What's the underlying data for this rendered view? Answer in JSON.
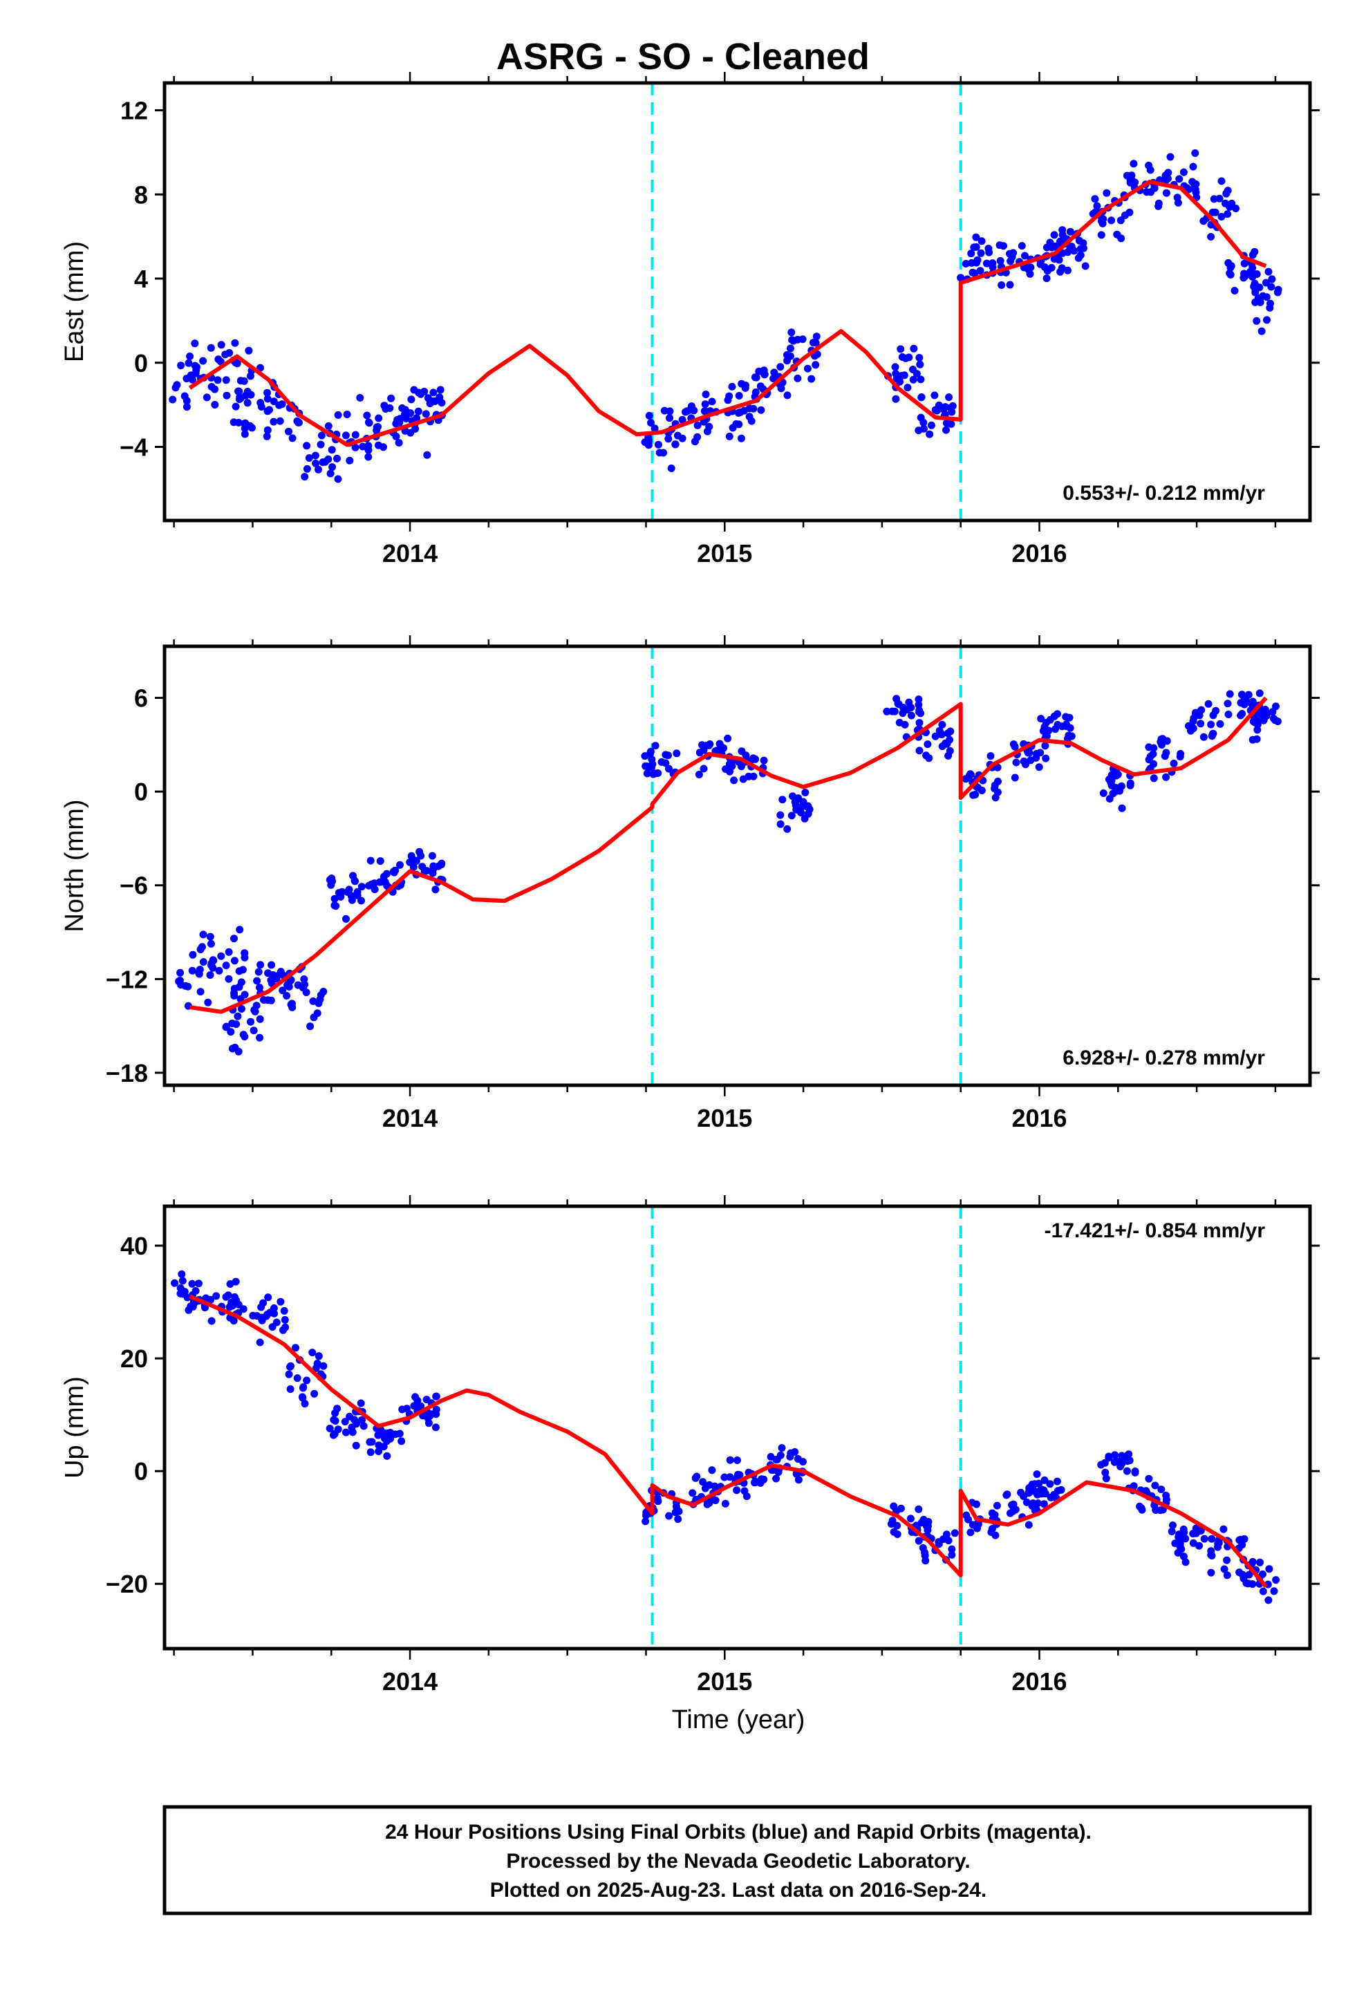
{
  "chart_data": {
    "title": "ASRG  - SO - Cleaned",
    "type": "scatter",
    "xlabel": "Time (year)",
    "x_tick_labels": [
      "2014",
      "2015",
      "2016"
    ],
    "xlim": [
      2013.22,
      2016.86
    ],
    "offsets": [
      2014.77,
      2015.75
    ],
    "colors": {
      "data": "#0000ff",
      "model": "#ff0000",
      "offset_line": "#00e5ee",
      "frame": "#000000"
    },
    "panels": [
      {
        "name": "east",
        "ylabel": "East (mm)",
        "ylim": [
          -7.5,
          13.3
        ],
        "yticks": [
          12,
          8,
          4,
          0,
          -4
        ],
        "ytick_labels": [
          "12",
          "8",
          "4",
          "0",
          "−4"
        ],
        "rate_text": "0.553+/- 0.212 mm/yr",
        "model": [
          [
            2013.3,
            -1.2
          ],
          [
            2013.45,
            0.3
          ],
          [
            2013.55,
            -0.8
          ],
          [
            2013.65,
            -2.5
          ],
          [
            2013.8,
            -3.9
          ],
          [
            2013.95,
            -3.2
          ],
          [
            2014.1,
            -2.5
          ],
          [
            2014.25,
            -0.5
          ],
          [
            2014.38,
            0.8
          ],
          [
            2014.5,
            -0.6
          ],
          [
            2014.6,
            -2.3
          ],
          [
            2014.72,
            -3.4
          ],
          [
            2014.8,
            -3.3
          ],
          [
            2014.95,
            -2.5
          ],
          [
            2015.1,
            -1.8
          ],
          [
            2015.25,
            0.2
          ],
          [
            2015.37,
            1.5
          ],
          [
            2015.45,
            0.5
          ],
          [
            2015.55,
            -1.2
          ],
          [
            2015.67,
            -2.6
          ],
          [
            2015.75,
            -2.7
          ],
          [
            2015.75,
            3.8
          ],
          [
            2015.9,
            4.5
          ],
          [
            2016.05,
            5.2
          ],
          [
            2016.2,
            7.2
          ],
          [
            2016.35,
            8.6
          ],
          [
            2016.45,
            8.3
          ],
          [
            2016.55,
            6.8
          ],
          [
            2016.65,
            5.0
          ],
          [
            2016.72,
            4.6
          ]
        ],
        "points": [
          [
            2013.3,
            -0.9,
            3.0
          ],
          [
            2013.42,
            -0.9,
            3.0
          ],
          [
            2013.5,
            -1.7,
            2.5
          ],
          [
            2013.6,
            -2.6,
            2.0
          ],
          [
            2013.72,
            -4.2,
            2.0
          ],
          [
            2013.85,
            -3.2,
            1.8
          ],
          [
            2013.97,
            -2.8,
            1.8
          ],
          [
            2014.05,
            -2.0,
            2.0
          ],
          [
            2014.8,
            -3.3,
            1.8
          ],
          [
            2014.92,
            -2.6,
            1.5
          ],
          [
            2015.05,
            -2.2,
            2.0
          ],
          [
            2015.15,
            -1.0,
            1.8
          ],
          [
            2015.25,
            0.5,
            2.0
          ],
          [
            2015.57,
            -0.4,
            1.8
          ],
          [
            2015.67,
            -2.5,
            1.5
          ],
          [
            2015.8,
            4.6,
            1.5
          ],
          [
            2015.92,
            4.6,
            1.5
          ],
          [
            2016.02,
            5.0,
            1.5
          ],
          [
            2016.1,
            5.5,
            1.4
          ],
          [
            2016.22,
            7.2,
            1.5
          ],
          [
            2016.33,
            8.5,
            1.6
          ],
          [
            2016.45,
            8.6,
            1.6
          ],
          [
            2016.57,
            7.2,
            1.6
          ],
          [
            2016.65,
            4.2,
            1.8
          ],
          [
            2016.72,
            3.5,
            2.0
          ]
        ]
      },
      {
        "name": "north",
        "ylabel": "North (mm)",
        "ylim": [
          -18.8,
          9.3
        ],
        "yticks": [
          6,
          0,
          -6,
          -12,
          -18
        ],
        "ytick_labels": [
          "6",
          "0",
          "−6",
          "−12",
          "−18"
        ],
        "rate_text": "6.928+/- 0.278 mm/yr",
        "model": [
          [
            2013.3,
            -13.8
          ],
          [
            2013.4,
            -14.1
          ],
          [
            2013.55,
            -12.8
          ],
          [
            2013.7,
            -10.5
          ],
          [
            2013.85,
            -7.8
          ],
          [
            2014.0,
            -5.1
          ],
          [
            2014.1,
            -5.8
          ],
          [
            2014.2,
            -6.9
          ],
          [
            2014.3,
            -7.0
          ],
          [
            2014.45,
            -5.6
          ],
          [
            2014.6,
            -3.8
          ],
          [
            2014.77,
            -1.0
          ],
          [
            2014.77,
            -0.8
          ],
          [
            2014.85,
            1.2
          ],
          [
            2014.95,
            2.4
          ],
          [
            2015.05,
            2.1
          ],
          [
            2015.15,
            1.0
          ],
          [
            2015.25,
            0.3
          ],
          [
            2015.4,
            1.2
          ],
          [
            2015.55,
            2.8
          ],
          [
            2015.75,
            5.6
          ],
          [
            2015.75,
            -0.4
          ],
          [
            2015.85,
            1.7
          ],
          [
            2016.0,
            3.3
          ],
          [
            2016.1,
            3.1
          ],
          [
            2016.2,
            2.0
          ],
          [
            2016.3,
            1.1
          ],
          [
            2016.45,
            1.5
          ],
          [
            2016.6,
            3.3
          ],
          [
            2016.72,
            6.0
          ]
        ],
        "points": [
          [
            2013.32,
            -11.5,
            2.5
          ],
          [
            2013.42,
            -10.8,
            2.5
          ],
          [
            2013.47,
            -14.7,
            2.5
          ],
          [
            2013.57,
            -12.0,
            2.2
          ],
          [
            2013.67,
            -13.2,
            2.5
          ],
          [
            2013.8,
            -6.5,
            1.8
          ],
          [
            2013.92,
            -5.6,
            1.6
          ],
          [
            2014.05,
            -4.8,
            1.8
          ],
          [
            2014.8,
            1.8,
            1.6
          ],
          [
            2014.97,
            2.4,
            1.5
          ],
          [
            2015.07,
            1.8,
            1.6
          ],
          [
            2015.22,
            -0.8,
            1.6
          ],
          [
            2015.57,
            4.8,
            1.6
          ],
          [
            2015.67,
            3.5,
            1.6
          ],
          [
            2015.82,
            0.7,
            1.8
          ],
          [
            2015.97,
            2.5,
            1.6
          ],
          [
            2016.05,
            4.0,
            1.6
          ],
          [
            2016.25,
            0.8,
            1.5
          ],
          [
            2016.4,
            2.3,
            1.8
          ],
          [
            2016.52,
            4.8,
            1.6
          ],
          [
            2016.65,
            5.5,
            1.4
          ],
          [
            2016.72,
            4.8,
            1.4
          ]
        ]
      },
      {
        "name": "up",
        "ylabel": "Up (mm)",
        "ylim": [
          -31.5,
          47
        ],
        "yticks": [
          40,
          20,
          0,
          -20
        ],
        "ytick_labels": [
          "40",
          "20",
          "0",
          "−20"
        ],
        "rate_text": "-17.421+/- 0.854 mm/yr",
        "model": [
          [
            2013.3,
            31.0
          ],
          [
            2013.45,
            27.5
          ],
          [
            2013.6,
            22.5
          ],
          [
            2013.75,
            14.5
          ],
          [
            2013.9,
            8.0
          ],
          [
            2014.0,
            9.5
          ],
          [
            2014.1,
            12.5
          ],
          [
            2014.18,
            14.3
          ],
          [
            2014.25,
            13.5
          ],
          [
            2014.35,
            10.5
          ],
          [
            2014.5,
            7.0
          ],
          [
            2014.62,
            3.0
          ],
          [
            2014.77,
            -7.5
          ],
          [
            2014.77,
            -2.5
          ],
          [
            2014.82,
            -4.5
          ],
          [
            2014.9,
            -6.0
          ],
          [
            2015.0,
            -3.0
          ],
          [
            2015.15,
            1.0
          ],
          [
            2015.25,
            0.0
          ],
          [
            2015.4,
            -4.5
          ],
          [
            2015.55,
            -8.0
          ],
          [
            2015.65,
            -12.5
          ],
          [
            2015.75,
            -18.5
          ],
          [
            2015.75,
            -3.5
          ],
          [
            2015.8,
            -8.5
          ],
          [
            2015.9,
            -9.5
          ],
          [
            2016.0,
            -7.5
          ],
          [
            2016.15,
            -2.0
          ],
          [
            2016.3,
            -3.5
          ],
          [
            2016.45,
            -7.5
          ],
          [
            2016.6,
            -12.5
          ],
          [
            2016.72,
            -20.5
          ]
        ],
        "points": [
          [
            2013.3,
            31.0,
            5.0
          ],
          [
            2013.42,
            29.0,
            5.0
          ],
          [
            2013.55,
            27.0,
            5.5
          ],
          [
            2013.67,
            17.0,
            5.0
          ],
          [
            2013.8,
            8.5,
            4.5
          ],
          [
            2013.92,
            5.5,
            4.5
          ],
          [
            2014.03,
            11.0,
            4.5
          ],
          [
            2014.8,
            -6.0,
            4.5
          ],
          [
            2014.95,
            -3.5,
            4.0
          ],
          [
            2015.07,
            -1.5,
            4.0
          ],
          [
            2015.2,
            1.0,
            4.5
          ],
          [
            2015.58,
            -9.5,
            4.5
          ],
          [
            2015.68,
            -12.0,
            4.5
          ],
          [
            2015.82,
            -9.0,
            4.5
          ],
          [
            2015.95,
            -6.0,
            4.0
          ],
          [
            2016.02,
            -3.0,
            4.0
          ],
          [
            2016.25,
            1.0,
            4.0
          ],
          [
            2016.35,
            -4.0,
            4.5
          ],
          [
            2016.47,
            -12.0,
            5.0
          ],
          [
            2016.6,
            -14.0,
            5.0
          ],
          [
            2016.7,
            -19.0,
            5.0
          ]
        ]
      }
    ],
    "footer": [
      "24 Hour Positions Using Final Orbits (blue) and Rapid Orbits (magenta).",
      "Processed by the Nevada Geodetic Laboratory.",
      "Plotted on 2025-Aug-23. Last data on 2016-Sep-24."
    ]
  }
}
